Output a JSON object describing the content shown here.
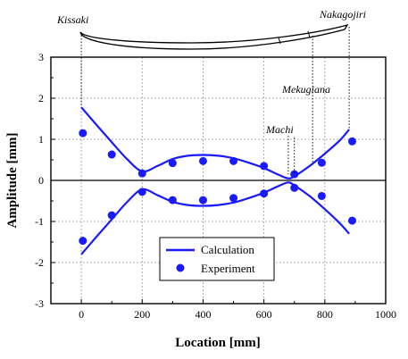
{
  "chart_data": {
    "type": "scatter",
    "title": "",
    "xlabel": "Location [mm]",
    "ylabel": "Amplitude [mm]",
    "xlim": [
      -100,
      1000
    ],
    "ylim": [
      -3,
      3
    ],
    "x_ticks": [
      0,
      200,
      400,
      600,
      800,
      1000
    ],
    "y_ticks": [
      -3,
      -2,
      -1,
      0,
      1,
      2,
      3
    ],
    "grid": true,
    "legend_position": "bottom-center",
    "series": [
      {
        "name": "Calculation",
        "kind": "line",
        "color": "#1a1aff",
        "branches": [
          {
            "x": [
              0,
              50,
              100,
              150,
              200,
              250,
              300,
              350,
              400,
              450,
              500,
              550,
              600,
              650,
              680,
              700,
              750,
              800,
              850,
              880
            ],
            "y": [
              1.78,
              1.35,
              0.93,
              0.52,
              0.22,
              0.35,
              0.52,
              0.6,
              0.62,
              0.6,
              0.54,
              0.43,
              0.3,
              0.13,
              0.05,
              0.1,
              0.35,
              0.65,
              0.98,
              1.24
            ]
          },
          {
            "x": [
              0,
              50,
              100,
              150,
              200,
              250,
              300,
              350,
              400,
              450,
              500,
              550,
              600,
              650,
              680,
              700,
              750,
              800,
              850,
              880
            ],
            "y": [
              -1.8,
              -1.37,
              -0.95,
              -0.53,
              -0.22,
              -0.36,
              -0.52,
              -0.6,
              -0.62,
              -0.6,
              -0.54,
              -0.43,
              -0.3,
              -0.13,
              -0.05,
              -0.12,
              -0.38,
              -0.7,
              -1.05,
              -1.3
            ]
          }
        ]
      },
      {
        "name": "Experiment",
        "kind": "scatter",
        "color": "#1a1aff",
        "x": [
          5,
          100,
          200,
          300,
          400,
          500,
          600,
          700,
          790,
          890
        ],
        "y_upper": [
          1.15,
          0.63,
          0.17,
          0.42,
          0.47,
          0.47,
          0.35,
          0.15,
          0.43,
          0.95
        ],
        "y_lower": [
          -1.47,
          -0.85,
          -0.28,
          -0.48,
          -0.48,
          -0.43,
          -0.32,
          -0.18,
          -0.38,
          -0.98
        ]
      }
    ],
    "annotations": [
      {
        "text": "Kissaki",
        "x": 0
      },
      {
        "text": "Machi",
        "x": 680
      },
      {
        "text": "Mekugiana",
        "x": 760
      },
      {
        "text": "Nakagojiri",
        "x": 880
      }
    ]
  }
}
